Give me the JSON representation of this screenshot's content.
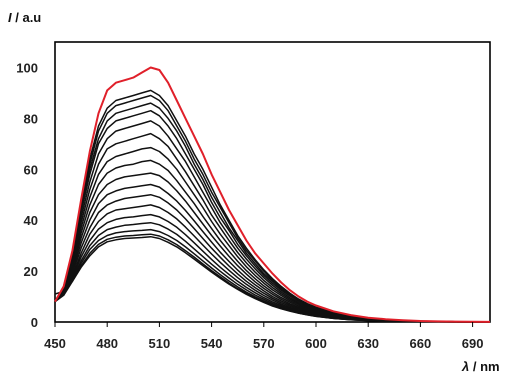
{
  "chart_data": {
    "type": "line",
    "ylabel_symbol": "I",
    "ylabel_unit": " / a.u",
    "xlabel_symbol": "λ",
    "xlabel_unit": " / nm",
    "xlim": [
      450,
      700
    ],
    "ylim": [
      0,
      110
    ],
    "x_ticks": [
      "450",
      "480",
      "510",
      "540",
      "570",
      "600",
      "630",
      "660",
      "690"
    ],
    "y_ticks": [
      "0",
      "20",
      "40",
      "60",
      "80",
      "100"
    ],
    "grid": false,
    "x": [
      450,
      455,
      460,
      465,
      470,
      475,
      480,
      485,
      490,
      495,
      500,
      505,
      510,
      515,
      520,
      525,
      530,
      535,
      540,
      545,
      550,
      555,
      560,
      565,
      570,
      575,
      580,
      585,
      590,
      595,
      600,
      610,
      620,
      630,
      640,
      650,
      660,
      670,
      680,
      690,
      700
    ],
    "highlight_color": "#e0202a",
    "series_color": "#111111",
    "series": [
      {
        "color": "#e0202a",
        "values": [
          8,
          14,
          28,
          48,
          67,
          82,
          91,
          94,
          95,
          96,
          98,
          100,
          99,
          94,
          87,
          80,
          73,
          66,
          58,
          51,
          44,
          38,
          32,
          27,
          23,
          19,
          15.5,
          12.5,
          10,
          8,
          6.5,
          4.2,
          2.7,
          1.7,
          1.1,
          0.7,
          0.4,
          0.25,
          0.15,
          0.08,
          0.05
        ]
      },
      {
        "values": [
          8,
          14,
          27,
          46,
          64,
          77,
          84,
          87,
          88,
          89,
          90,
          91,
          89,
          85,
          79,
          73,
          66,
          60,
          53,
          46,
          40,
          34,
          29,
          24.5,
          20.5,
          17,
          14,
          11.3,
          9,
          7.2,
          5.8,
          3.7,
          2.4,
          1.5,
          1,
          0.6,
          0.35,
          0.2,
          0.12,
          0.07,
          0.04
        ]
      },
      {
        "values": [
          8,
          14,
          27,
          45,
          62,
          75,
          82,
          85,
          86,
          87,
          88,
          89,
          87,
          83,
          77,
          71,
          64,
          58,
          51,
          45,
          39,
          33,
          28,
          24,
          20,
          16.5,
          13.5,
          11,
          8.8,
          7,
          5.6,
          3.6,
          2.3,
          1.5,
          1,
          0.6,
          0.35,
          0.2,
          0.12,
          0.07,
          0.04
        ]
      },
      {
        "values": [
          8,
          13,
          26,
          44,
          60,
          72,
          79,
          82,
          83,
          84,
          85,
          86,
          84,
          80,
          75,
          69,
          62,
          56,
          49,
          43,
          37,
          32,
          27,
          23,
          19,
          16,
          13,
          10.6,
          8.5,
          6.8,
          5.4,
          3.5,
          2.2,
          1.4,
          0.9,
          0.55,
          0.33,
          0.2,
          0.12,
          0.07,
          0.04
        ]
      },
      {
        "values": [
          8,
          13,
          26,
          43,
          58,
          70,
          76,
          79,
          80,
          81,
          82,
          83,
          81,
          77,
          72,
          66,
          60,
          54,
          47,
          41,
          36,
          30.5,
          26,
          22,
          18.3,
          15.2,
          12.5,
          10.2,
          8.2,
          6.5,
          5.2,
          3.3,
          2.1,
          1.35,
          0.85,
          0.52,
          0.31,
          0.19,
          0.11,
          0.06,
          0.04
        ]
      },
      {
        "values": [
          8,
          13,
          25,
          41,
          55,
          66,
          72,
          75,
          76,
          77,
          78,
          79,
          77,
          73,
          68,
          63,
          57,
          51,
          45,
          39,
          34,
          29,
          24.7,
          20.9,
          17.4,
          14.4,
          11.8,
          9.6,
          7.7,
          6.2,
          4.9,
          3.1,
          2,
          1.3,
          0.8,
          0.5,
          0.3,
          0.18,
          0.1,
          0.06,
          0.03
        ]
      },
      {
        "values": [
          8,
          13,
          24,
          39,
          52,
          62,
          68,
          70,
          71,
          72,
          73,
          74,
          72,
          69,
          64,
          59,
          53.5,
          48,
          42,
          37,
          32,
          27.3,
          23.2,
          19.6,
          16.3,
          13.5,
          11.1,
          9,
          7.3,
          5.8,
          4.6,
          2.9,
          1.9,
          1.2,
          0.75,
          0.46,
          0.28,
          0.17,
          0.1,
          0.06,
          0.03
        ]
      },
      {
        "values": [
          8,
          12,
          23,
          37,
          49,
          58,
          63,
          65,
          66,
          67,
          68,
          68.5,
          67,
          64,
          60,
          55,
          50,
          45,
          39.5,
          34.5,
          30,
          25.6,
          21.7,
          18.3,
          15.3,
          12.6,
          10.4,
          8.4,
          6.8,
          5.4,
          4.3,
          2.7,
          1.75,
          1.1,
          0.7,
          0.43,
          0.26,
          0.16,
          0.09,
          0.05,
          0.03
        ]
      },
      {
        "values": [
          8,
          12,
          22,
          35,
          46,
          54,
          58.5,
          60.5,
          61.5,
          62,
          63,
          63.5,
          62,
          59.5,
          55.5,
          51,
          46.5,
          41.5,
          36.7,
          32,
          27.8,
          23.8,
          20.2,
          17,
          14.2,
          11.7,
          9.6,
          7.8,
          6.3,
          5,
          4,
          2.55,
          1.6,
          1,
          0.65,
          0.4,
          0.24,
          0.15,
          0.09,
          0.05,
          0.03
        ]
      },
      {
        "values": [
          8,
          12,
          21,
          33,
          43,
          50,
          54,
          56,
          57,
          57.5,
          58,
          58.5,
          57.5,
          55,
          51.5,
          47.5,
          43,
          38.5,
          34,
          29.8,
          25.8,
          22.1,
          18.8,
          15.8,
          13.2,
          10.9,
          8.9,
          7.2,
          5.8,
          4.6,
          3.7,
          2.35,
          1.5,
          0.95,
          0.6,
          0.37,
          0.22,
          0.14,
          0.08,
          0.05,
          0.03
        ]
      },
      {
        "values": [
          8,
          12,
          20,
          31,
          40,
          46.5,
          50,
          51.5,
          52.5,
          53,
          53.5,
          54,
          53,
          50.5,
          47.5,
          43.8,
          39.7,
          35.5,
          31.4,
          27.4,
          23.8,
          20.4,
          17.3,
          14.6,
          12.2,
          10,
          8.2,
          6.7,
          5.4,
          4.3,
          3.4,
          2.15,
          1.4,
          0.9,
          0.56,
          0.34,
          0.21,
          0.13,
          0.08,
          0.04,
          0.02
        ]
      },
      {
        "values": [
          8,
          11.5,
          19,
          29,
          37,
          43,
          46,
          47.5,
          48.5,
          49,
          49.5,
          50,
          49,
          46.8,
          44,
          40.5,
          36.7,
          32.8,
          29,
          25.4,
          22,
          18.9,
          16,
          13.5,
          11.3,
          9.3,
          7.6,
          6.2,
          5,
          4,
          3.2,
          2,
          1.3,
          0.82,
          0.52,
          0.32,
          0.19,
          0.12,
          0.07,
          0.04,
          0.02
        ]
      },
      {
        "values": [
          8,
          11.5,
          18,
          27,
          34.5,
          39.5,
          42.5,
          44,
          44.5,
          45,
          45.5,
          46,
          45,
          43,
          40.5,
          37.3,
          33.8,
          30.2,
          26.7,
          23.4,
          20.3,
          17.4,
          14.8,
          12.5,
          10.4,
          8.6,
          7,
          5.7,
          4.6,
          3.7,
          2.95,
          1.85,
          1.2,
          0.76,
          0.48,
          0.29,
          0.18,
          0.11,
          0.06,
          0.04,
          0.02
        ]
      },
      {
        "values": [
          8,
          11,
          17.5,
          25.5,
          32,
          36.5,
          39,
          40.3,
          41,
          41.3,
          41.8,
          42.2,
          41.3,
          39.5,
          37.2,
          34.3,
          31.1,
          27.8,
          24.6,
          21.5,
          18.7,
          16,
          13.6,
          11.5,
          9.6,
          7.9,
          6.5,
          5.3,
          4.3,
          3.4,
          2.7,
          1.7,
          1.1,
          0.7,
          0.44,
          0.27,
          0.16,
          0.1,
          0.06,
          0.03,
          0.02
        ]
      },
      {
        "values": [
          8,
          11,
          17,
          24,
          30,
          34,
          36.3,
          37.3,
          38,
          38.3,
          38.7,
          39,
          38.2,
          36.5,
          34.4,
          31.7,
          28.7,
          25.7,
          22.7,
          19.9,
          17.3,
          14.8,
          12.6,
          10.6,
          8.9,
          7.3,
          6,
          4.9,
          4,
          3.2,
          2.5,
          1.6,
          1,
          0.65,
          0.41,
          0.25,
          0.15,
          0.09,
          0.05,
          0.03,
          0.02
        ]
      },
      {
        "values": [
          8,
          11,
          16.5,
          23,
          28.5,
          32,
          34,
          35,
          35.5,
          35.8,
          36,
          36.3,
          35.5,
          34,
          32,
          29.5,
          26.8,
          24,
          21.2,
          18.6,
          16.1,
          13.8,
          11.7,
          9.9,
          8.3,
          6.8,
          5.6,
          4.6,
          3.7,
          3,
          2.35,
          1.5,
          0.95,
          0.6,
          0.38,
          0.23,
          0.14,
          0.09,
          0.05,
          0.03,
          0.02
        ]
      },
      {
        "values": [
          8,
          10.5,
          16,
          22,
          27,
          30.5,
          32.5,
          33.3,
          33.8,
          34,
          34.3,
          34.5,
          33.8,
          32.3,
          30.4,
          28,
          25.5,
          22.8,
          20.2,
          17.7,
          15.3,
          13.1,
          11.2,
          9.4,
          7.9,
          6.5,
          5.3,
          4.4,
          3.5,
          2.85,
          2.25,
          1.42,
          0.9,
          0.57,
          0.36,
          0.22,
          0.13,
          0.08,
          0.05,
          0.03,
          0.02
        ]
      },
      {
        "values": [
          11,
          12,
          16,
          21.5,
          26,
          29.5,
          31.5,
          32.3,
          32.8,
          33,
          33.2,
          33.5,
          32.8,
          31.3,
          29.5,
          27.2,
          24.7,
          22.1,
          19.6,
          17.2,
          14.9,
          12.8,
          10.9,
          9.2,
          7.7,
          6.3,
          5.2,
          4.3,
          3.45,
          2.8,
          2.2,
          1.4,
          0.88,
          0.56,
          0.35,
          0.22,
          0.13,
          0.08,
          0.05,
          0.03,
          0.02
        ]
      }
    ]
  }
}
